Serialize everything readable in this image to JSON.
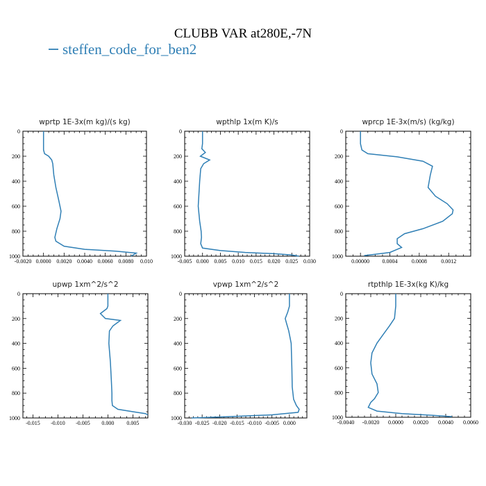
{
  "figure": {
    "title": "CLUBB VAR at280E,-7N",
    "legend": [
      {
        "name": "steffen_code_for_ben2",
        "color": "#2f7fb5"
      }
    ]
  },
  "chart_data": [
    {
      "type": "line",
      "title": "wprtp  1E-3x(m kg)/(s kg)",
      "xlim": [
        -0.002,
        0.01
      ],
      "ylim": [
        1000,
        0
      ],
      "xticks": [
        -0.002,
        0.0,
        0.002,
        0.004,
        0.006,
        0.008,
        0.01
      ],
      "xtick_labels": [
        "-0.0020",
        "0.0000",
        "0.0020",
        "0.0040",
        "0.0060",
        "0.0080",
        "0.010"
      ],
      "yticks": [
        0,
        200,
        400,
        600,
        800,
        1000
      ],
      "ytick_labels": [
        "0",
        "200",
        "400",
        "600",
        "800",
        "1000"
      ],
      "series": [
        {
          "name": "steffen_code_for_ben2",
          "color": "#2f7fb5",
          "x": [
            0.0,
            0.0,
            0.0,
            0.0001,
            0.0005,
            0.0008,
            0.0009,
            0.001,
            0.0012,
            0.0015,
            0.0017,
            0.0016,
            0.0013,
            0.0011,
            0.0012,
            0.002,
            0.004,
            0.007,
            0.009,
            0.0085
          ],
          "y": [
            0,
            100,
            150,
            180,
            200,
            230,
            260,
            350,
            450,
            560,
            640,
            700,
            780,
            850,
            880,
            920,
            945,
            960,
            975,
            1000
          ]
        }
      ]
    },
    {
      "type": "line",
      "title": "wpthlp  1x(m K)/s",
      "xlim": [
        -0.005,
        0.03
      ],
      "ylim": [
        1000,
        0
      ],
      "xticks": [
        -0.005,
        0.0,
        0.005,
        0.01,
        0.015,
        0.02,
        0.025,
        0.03
      ],
      "xtick_labels": [
        "-0.005",
        "0.000",
        "0.005",
        "0.010",
        "0.015",
        "0.020",
        "0.025",
        "0.030"
      ],
      "yticks": [
        0,
        200,
        400,
        600,
        800,
        1000
      ],
      "ytick_labels": [
        "0",
        "200",
        "400",
        "600",
        "800",
        "1000"
      ],
      "series": [
        {
          "name": "steffen_code_for_ben2",
          "color": "#2f7fb5",
          "x": [
            0.0,
            0.0,
            -0.0002,
            0.0008,
            -0.0006,
            0.002,
            0.0003,
            -0.0005,
            -0.0008,
            -0.0012,
            -0.0008,
            -0.0004,
            -0.0003,
            -0.0005,
            0.0,
            0.005,
            0.012,
            0.02,
            0.025,
            0.027
          ],
          "y": [
            0,
            100,
            140,
            170,
            200,
            230,
            260,
            300,
            400,
            600,
            720,
            800,
            850,
            900,
            935,
            955,
            970,
            980,
            990,
            1000
          ]
        }
      ]
    },
    {
      "type": "line",
      "title": "wprcp  1E-3x(m/s) (kg/kg)",
      "xlim": [
        -0.0002,
        0.0015
      ],
      "ylim": [
        1000,
        0
      ],
      "xticks": [
        0.0,
        0.0004,
        0.0008,
        0.0012
      ],
      "xtick_labels": [
        "0.00000",
        "0.0004",
        "0.0008",
        "0.0012"
      ],
      "yticks": [
        0,
        200,
        400,
        600,
        800,
        1000
      ],
      "ytick_labels": [
        "0",
        "200",
        "400",
        "600",
        "800",
        "1000"
      ],
      "series": [
        {
          "name": "steffen_code_for_ben2",
          "color": "#2f7fb5",
          "x": [
            0.0,
            0.0,
            2e-05,
            0.0001,
            0.0005,
            0.00085,
            0.00098,
            0.00095,
            0.00092,
            0.00102,
            0.00118,
            0.00126,
            0.00125,
            0.00112,
            0.00085,
            0.0006,
            0.0005,
            0.0005,
            0.00056,
            0.0004,
            0.0002,
            5e-05
          ],
          "y": [
            0,
            100,
            150,
            180,
            205,
            240,
            280,
            350,
            450,
            520,
            580,
            630,
            660,
            720,
            780,
            820,
            860,
            900,
            930,
            970,
            985,
            995
          ]
        }
      ]
    },
    {
      "type": "line",
      "title": "upwp  1xm^2/s^2",
      "xlim": [
        -0.017,
        0.008
      ],
      "ylim": [
        1000,
        0
      ],
      "xticks": [
        -0.015,
        -0.01,
        -0.005,
        0.0,
        0.005
      ],
      "xtick_labels": [
        "-0.015",
        "-0.010",
        "-0.005",
        "0.000",
        "0.005"
      ],
      "yticks": [
        0,
        200,
        400,
        600,
        800,
        1000
      ],
      "ytick_labels": [
        "0",
        "200",
        "400",
        "600",
        "800",
        "1000"
      ],
      "series": [
        {
          "name": "steffen_code_for_ben2",
          "color": "#2f7fb5",
          "x": [
            0.0,
            0.0,
            -0.0002,
            -0.0015,
            -0.0005,
            0.0025,
            0.001,
            0.0003,
            0.0002,
            0.0005,
            0.0007,
            0.0008,
            0.0008,
            0.0009,
            0.002,
            0.005,
            0.0075,
            0.008
          ],
          "y": [
            0,
            100,
            120,
            160,
            200,
            215,
            260,
            300,
            400,
            550,
            700,
            800,
            860,
            900,
            930,
            950,
            965,
            975
          ]
        }
      ]
    },
    {
      "type": "line",
      "title": "vpwp  1xm^2/s^2",
      "xlim": [
        -0.03,
        0.005
      ],
      "ylim": [
        1000,
        0
      ],
      "xticks": [
        -0.03,
        -0.025,
        -0.02,
        -0.015,
        -0.01,
        -0.005,
        0.0
      ],
      "xtick_labels": [
        "-0.030",
        "-0.025",
        "-0.020",
        "-0.015",
        "-0.010",
        "-0.005",
        "0.000"
      ],
      "yticks": [
        0,
        200,
        400,
        600,
        800,
        1000
      ],
      "ytick_labels": [
        "0",
        "200",
        "400",
        "600",
        "800",
        "1000"
      ],
      "series": [
        {
          "name": "steffen_code_for_ben2",
          "color": "#2f7fb5",
          "x": [
            0.0,
            0.0,
            -0.0005,
            -0.0012,
            -0.0008,
            -0.0002,
            0.0005,
            0.0007,
            0.0008,
            0.0012,
            0.002,
            0.0028,
            0.0025,
            -0.005,
            -0.018,
            -0.028
          ],
          "y": [
            0,
            100,
            150,
            200,
            240,
            300,
            400,
            600,
            750,
            850,
            900,
            930,
            955,
            975,
            990,
            1000
          ]
        }
      ]
    },
    {
      "type": "line",
      "title": "rtpthlp  1E-3x(kg K)/kg",
      "xlim": [
        -0.004,
        0.006
      ],
      "ylim": [
        1000,
        0
      ],
      "xticks": [
        -0.004,
        -0.002,
        0.0,
        0.002,
        0.004,
        0.006
      ],
      "xtick_labels": [
        "-0.0040",
        "-0.0020",
        "0.0000",
        "0.0020",
        "0.0040",
        "0.0060"
      ],
      "yticks": [
        0,
        200,
        400,
        600,
        800,
        1000
      ],
      "ytick_labels": [
        "0",
        "200",
        "400",
        "600",
        "800",
        "1000"
      ],
      "series": [
        {
          "name": "steffen_code_for_ben2",
          "color": "#2f7fb5",
          "x": [
            0.0,
            0.0,
            -0.0001,
            -0.0005,
            -0.001,
            -0.0015,
            -0.0019,
            -0.002,
            -0.0019,
            -0.0015,
            -0.0014,
            -0.0017,
            -0.002,
            -0.0022,
            -0.0015,
            0.0005,
            0.003,
            0.0045
          ],
          "y": [
            0,
            100,
            200,
            260,
            330,
            400,
            480,
            560,
            650,
            730,
            800,
            850,
            880,
            920,
            950,
            970,
            985,
            995
          ]
        }
      ]
    }
  ]
}
